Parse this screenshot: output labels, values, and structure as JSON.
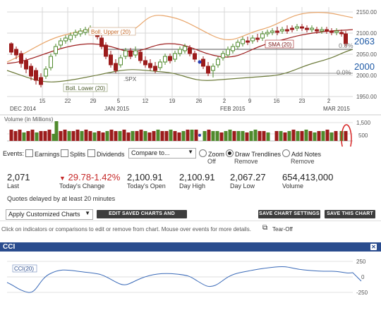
{
  "price_chart": {
    "y_ticks": [
      "2150.00",
      "2100.00",
      "2050.00",
      "2000.00",
      "1950.00"
    ],
    "x_ticks": [
      "15",
      "22",
      "29",
      "5",
      "12",
      "19",
      "26",
      "2",
      "9",
      "16",
      "23",
      "2"
    ],
    "months": [
      "DEC 2014",
      "JAN 2015",
      "FEB 2015",
      "MAR 2015"
    ],
    "boll_upper_label": "Boll. Upper (20)",
    "boll_lower_label": "Boll. Lower (20)",
    "sma_label": "SMA (20)",
    "spx_label": ".SPX",
    "pct_top": "0.0%",
    "pct_mid": "0.0%",
    "value_2063": "2063",
    "value_2000": "2000",
    "colors": {
      "up": "#4f8a2c",
      "down": "#9c1c1c",
      "boll": "#e8a56a",
      "sma": "#9c1c1c",
      "lower": "#6c7a3a",
      "annot": "#1f5aa6",
      "circle": "#d62020"
    }
  },
  "volume_chart": {
    "label": "Volume (in Millions)",
    "y_ticks": [
      "1,500",
      "500"
    ]
  },
  "events": {
    "label": "Events:",
    "earnings": "Earnings",
    "splits": "Splits",
    "dividends": "Dividends",
    "compare_placeholder": "Compare to...",
    "zoom_label": "Zoom",
    "zoom_sub": "Off",
    "trendlines_label": "Draw Trendlines",
    "trendlines_sub": "Remove",
    "notes_label": "Add Notes",
    "notes_sub": "Remove"
  },
  "stats": [
    {
      "value": "2,071",
      "label": "Last"
    },
    {
      "value": "29.78-1.42%",
      "label": "Today's Change",
      "arrow": "▼"
    },
    {
      "value": "2,100.91",
      "label": "Today's Open"
    },
    {
      "value": "2,100.91",
      "label": "Day High"
    },
    {
      "value": "2,067.27",
      "label": "Day Low"
    },
    {
      "value": "654,413,000",
      "label": "Volume"
    }
  ],
  "quotes_delay": "Quotes delayed by at least 20 minutes",
  "toolbar": {
    "apply_select": "Apply Customized Charts",
    "edit_saved": "EDIT SAVED CHARTS AND SETTINGS",
    "save_settings": "SAVE CHART SETTINGS",
    "save_chart": "SAVE THIS CHART"
  },
  "hint": "Click on indicators or comparisons to edit or remove from chart. Mouse over events for more details.",
  "tearoff": "Tear-Off",
  "cci": {
    "title": "CCI",
    "label": "CCI(20)",
    "y_ticks": [
      "250",
      "0",
      "-250"
    ]
  },
  "chart_data": {
    "type": "candlestick",
    "categories": [
      "Dec 15",
      "Dec 22",
      "Dec 29",
      "Jan 5",
      "Jan 12",
      "Jan 19",
      "Jan 26",
      "Feb 2",
      "Feb 9",
      "Feb 16",
      "Feb 23",
      "Mar 2"
    ],
    "ylim": [
      1950,
      2150
    ],
    "boll_upper": [
      2085,
      2090,
      2098,
      2100,
      2082,
      2070,
      2075,
      2080,
      2090,
      2110,
      2130,
      2120
    ],
    "sma": [
      2055,
      2060,
      2065,
      2068,
      2050,
      2048,
      2052,
      2055,
      2070,
      2085,
      2100,
      2105
    ],
    "boll_lower": [
      1990,
      1985,
      1995,
      2000,
      2005,
      2010,
      2012,
      2000,
      2010,
      2020,
      2045,
      2060
    ],
    "last_close": 2063,
    "cci_ylim": [
      -250,
      250
    ],
    "cci": [
      -150,
      -100,
      80,
      50,
      -220,
      -120,
      150,
      -120,
      80,
      120,
      150,
      -80
    ]
  }
}
